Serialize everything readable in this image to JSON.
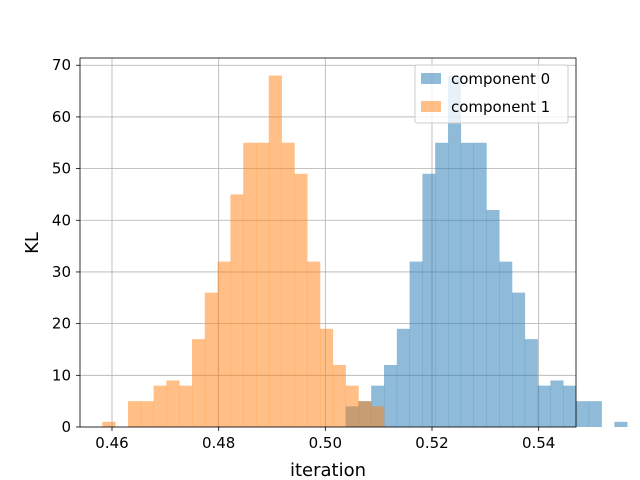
{
  "chart_data": {
    "type": "histogram",
    "xlabel": "iteration",
    "ylabel": "KL",
    "xlim": [
      0.454,
      0.547
    ],
    "ylim": [
      0,
      71.4
    ],
    "x_ticks": [
      0.46,
      0.48,
      0.5,
      0.52,
      0.54
    ],
    "x_tick_labels": [
      "0.46",
      "0.48",
      "0.50",
      "0.52",
      "0.54"
    ],
    "y_ticks": [
      0,
      10,
      20,
      30,
      40,
      50,
      60,
      70
    ],
    "y_tick_labels": [
      "0",
      "10",
      "20",
      "30",
      "40",
      "50",
      "60",
      "70"
    ],
    "grid": true,
    "legend_position": "upper-right",
    "bar_opacity": 0.5,
    "series": [
      {
        "name": "component 0",
        "color": "#1f77b4",
        "bin_start": 0.4582,
        "bin_width": 0.0024,
        "counts": [
          0,
          0,
          0,
          0,
          0,
          0,
          0,
          0,
          0,
          0,
          0,
          0,
          0,
          0,
          0,
          0,
          0,
          0,
          0,
          4,
          5,
          8,
          12,
          19,
          32,
          49,
          55,
          68,
          55,
          55,
          42,
          32,
          26,
          17,
          8,
          9,
          8,
          5,
          5,
          0,
          1
        ]
      },
      {
        "name": "component 1",
        "color": "#ff7f0e",
        "bin_start": 0.4582,
        "bin_width": 0.0024,
        "counts": [
          1,
          0,
          5,
          5,
          8,
          9,
          8,
          17,
          26,
          32,
          45,
          55,
          55,
          68,
          55,
          49,
          32,
          19,
          12,
          8,
          5,
          4,
          0,
          0,
          0,
          0,
          0,
          0,
          0,
          0,
          0,
          0,
          0,
          0,
          0,
          0,
          0,
          0,
          0,
          0,
          0
        ]
      }
    ]
  }
}
